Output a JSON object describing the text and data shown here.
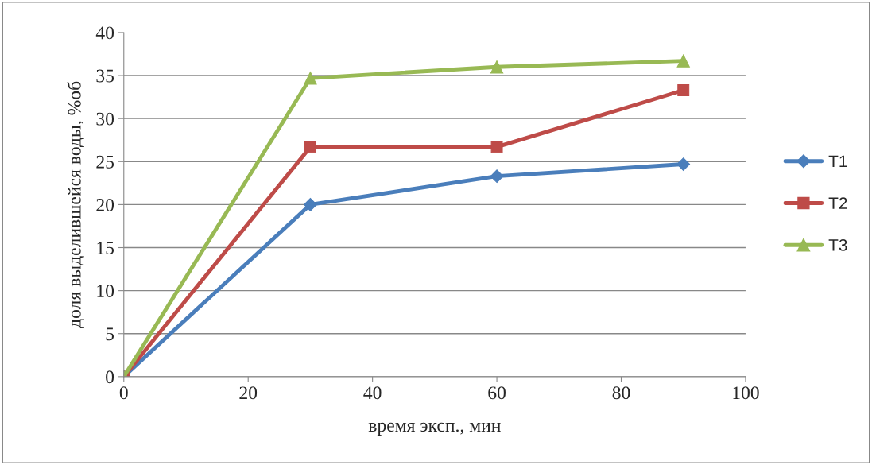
{
  "chart_data": {
    "type": "line",
    "xlabel": "время эксп., мин",
    "ylabel": "доля выделившейся воды, %об",
    "x": [
      0,
      30,
      60,
      90
    ],
    "series": [
      {
        "name": "Т1",
        "color": "#4a7ebb",
        "marker": "diamond",
        "values": [
          0,
          20,
          23.3,
          24.7
        ]
      },
      {
        "name": "Т2",
        "color": "#be4b48",
        "marker": "square",
        "values": [
          0,
          26.7,
          26.7,
          33.3
        ]
      },
      {
        "name": "Т3",
        "color": "#98b954",
        "marker": "triangle",
        "values": [
          0,
          34.7,
          36,
          36.7
        ]
      }
    ],
    "xlim": [
      0,
      100
    ],
    "xticks": [
      0,
      20,
      40,
      60,
      80,
      100
    ],
    "ylim": [
      0,
      40
    ],
    "yticks": [
      0,
      5,
      10,
      15,
      20,
      25,
      30,
      35,
      40
    ],
    "grid": "y",
    "legend": "right",
    "line_style": "solid"
  }
}
